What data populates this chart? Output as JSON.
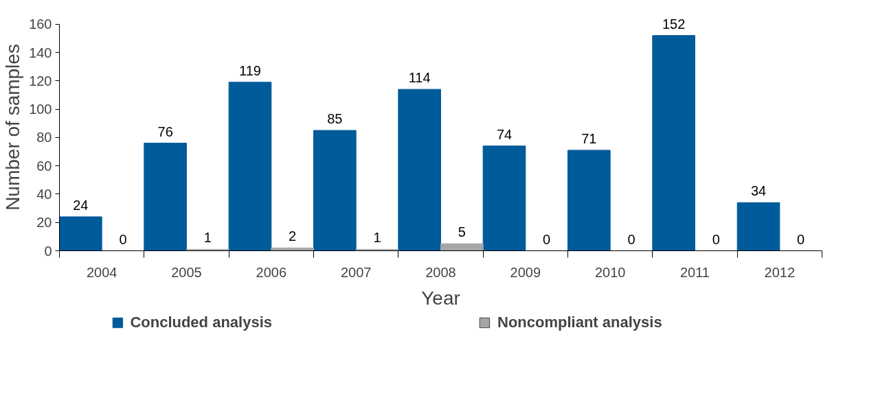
{
  "chart_data": {
    "type": "bar",
    "xlabel": "Year",
    "ylabel": "Number of samples",
    "categories": [
      "2004",
      "2005",
      "2006",
      "2007",
      "2008",
      "2009",
      "2010",
      "2011",
      "2012"
    ],
    "series": [
      {
        "name": "Concluded analysis",
        "color": "#005b9a",
        "values": [
          24,
          76,
          119,
          85,
          114,
          74,
          71,
          152,
          34
        ]
      },
      {
        "name": "Noncompliant analysis",
        "color": "#a6a6a6",
        "values": [
          0,
          1,
          2,
          1,
          5,
          0,
          0,
          0,
          0
        ]
      }
    ],
    "ylim": [
      0,
      160
    ],
    "yticks": [
      0,
      20,
      40,
      60,
      80,
      100,
      120,
      140,
      160
    ],
    "data_labels": true,
    "legend": "bottom"
  }
}
